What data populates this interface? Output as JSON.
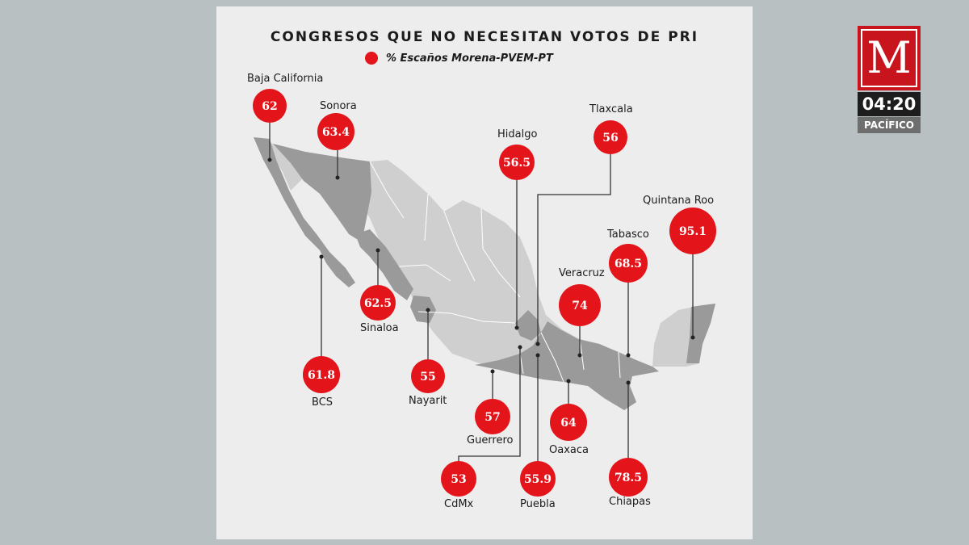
{
  "title": "CONGRESOS QUE NO NECESITAN VOTOS DE PRI",
  "legend": {
    "label": "% Escaños Morena-PVEM-PT",
    "color": "#e4141b"
  },
  "broadcast": {
    "logo_letter": "M",
    "time": "04:20",
    "zone": "PACÍFICO"
  },
  "colors": {
    "marker": "#e4141b",
    "highlighted_state": "#9a9a9a",
    "other_state": "#cfcfcf",
    "leader_line": "#333333"
  },
  "states": [
    {
      "name": "Baja California",
      "value": "62"
    },
    {
      "name": "Sonora",
      "value": "63.4"
    },
    {
      "name": "Hidalgo",
      "value": "56.5"
    },
    {
      "name": "Tlaxcala",
      "value": "56"
    },
    {
      "name": "Quintana Roo",
      "value": "95.1"
    },
    {
      "name": "Tabasco",
      "value": "68.5"
    },
    {
      "name": "Veracruz",
      "value": "74"
    },
    {
      "name": "Sinaloa",
      "value": "62.5"
    },
    {
      "name": "BCS",
      "value": "61.8"
    },
    {
      "name": "Nayarit",
      "value": "55"
    },
    {
      "name": "Guerrero",
      "value": "57"
    },
    {
      "name": "Oaxaca",
      "value": "64"
    },
    {
      "name": "CdMx",
      "value": "53"
    },
    {
      "name": "Puebla",
      "value": "55.9"
    },
    {
      "name": "Chiapas",
      "value": "78.5"
    }
  ]
}
